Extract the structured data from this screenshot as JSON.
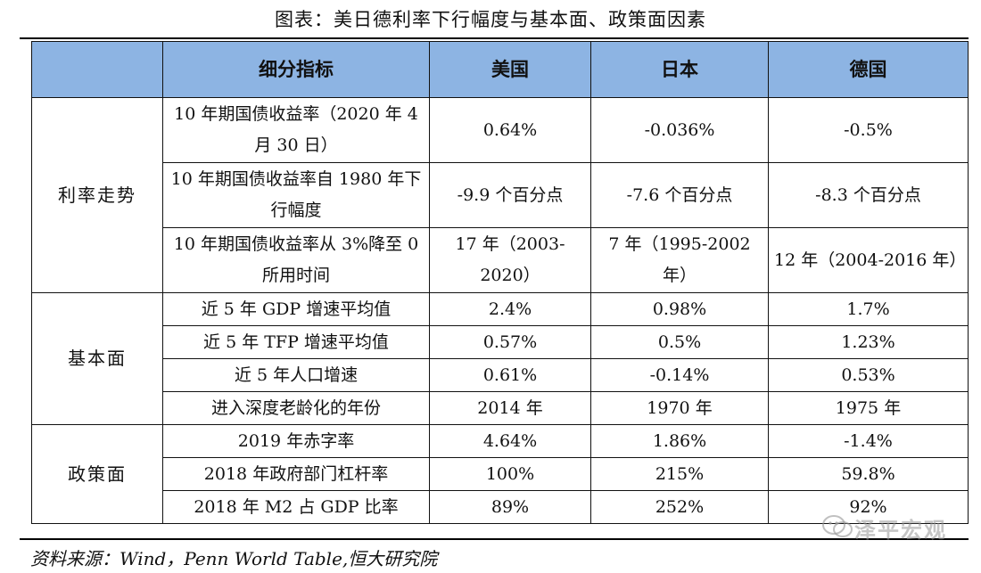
{
  "title": "图表：美日德利率下行幅度与基本面、政策面因素",
  "header": [
    "细分指标",
    "美国",
    "日本",
    "德国"
  ],
  "groups": [
    {
      "category": "利率走势",
      "rows": [
        {
          "metric": "10 年期国债收益率（2020 年 4 月 30 日）",
          "us": "0.64%",
          "jp": "-0.036%",
          "de": "-0.5%"
        },
        {
          "metric": "10 年期国债收益率自 1980 年下行幅度",
          "us": "-9.9 个百分点",
          "jp": "-7.6 个百分点",
          "de": "-8.3 个百分点"
        },
        {
          "metric": "10 年期国债收益率从 3%降至 0 所用时间",
          "us": "17 年（2003-2020）",
          "jp": "7 年（1995-2002 年）",
          "de": "12 年（2004-2016 年）"
        }
      ]
    },
    {
      "category": "基本面",
      "rows": [
        {
          "metric": "近 5 年 GDP 增速平均值",
          "us": "2.4%",
          "jp": "0.98%",
          "de": "1.7%"
        },
        {
          "metric": "近 5 年 TFP 增速平均值",
          "us": "0.57%",
          "jp": "0.5%",
          "de": "1.23%"
        },
        {
          "metric": "近 5 年人口增速",
          "us": "0.61%",
          "jp": "-0.14%",
          "de": "0.53%"
        },
        {
          "metric": "进入深度老龄化的年份",
          "us": "2014 年",
          "jp": "1970 年",
          "de": "1975 年"
        }
      ]
    },
    {
      "category": "政策面",
      "rows": [
        {
          "metric": "2019 年赤字率",
          "us": "4.64%",
          "jp": "1.86%",
          "de": "-1.4%"
        },
        {
          "metric": "2018 年政府部门杠杆率",
          "us": "100%",
          "jp": "215%",
          "de": "59.8%"
        },
        {
          "metric": "2018 年 M2 占 GDP 比率",
          "us": "89%",
          "jp": "252%",
          "de": "92%"
        }
      ]
    }
  ],
  "source": "资料来源：Wind，Penn World Table,恒大研究院",
  "watermark": "泽平宏观"
}
